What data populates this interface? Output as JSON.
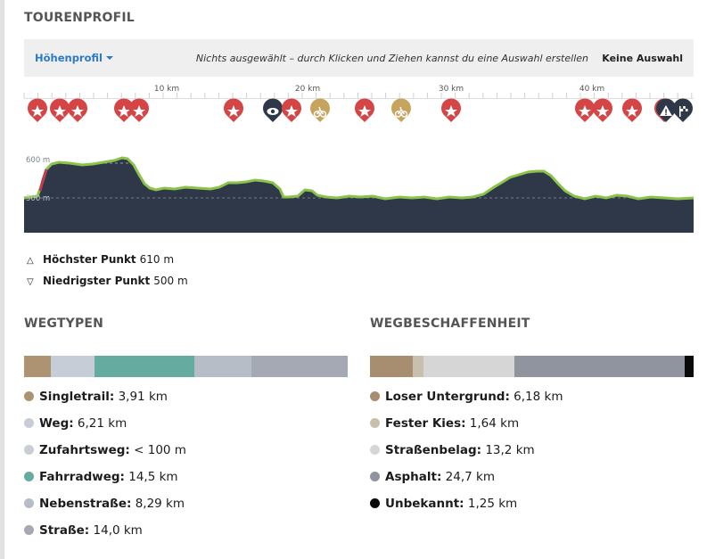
{
  "title": "TOURENPROFIL",
  "toolbar": {
    "dropdown_label": "Höhenprofil",
    "hint": "Nichts ausgewählt – durch Klicken und Ziehen kannst du eine Auswahl erstellen",
    "no_selection": "Keine Auswahl"
  },
  "distance_ticks": [
    "10 km",
    "20 km",
    "30 km",
    "40 km"
  ],
  "elevation_labels": [
    "600 m",
    "500 m"
  ],
  "waypoint_icons": [
    "highlight-star",
    "highlight-star",
    "highlight-star",
    "highlight-star",
    "highlight-star",
    "highlight-star",
    "viewpoint-eye",
    "highlight-star",
    "bike-shop",
    "highlight-star",
    "bike-shop",
    "highlight-star",
    "highlight-star",
    "highlight-star",
    "highlight-star",
    "highlight-star",
    "warning-sign",
    "finish-flag"
  ],
  "stats": {
    "highest_label": "Höchster Punkt",
    "highest_value": "610 m",
    "lowest_label": "Niedrigster Punkt",
    "lowest_value": "500 m"
  },
  "wegtypen": {
    "title": "WEGTYPEN",
    "items": [
      {
        "label": "Singletrail:",
        "value": "3,91 km",
        "color": "#ae9372"
      },
      {
        "label": "Weg:",
        "value": "6,21 km",
        "color": "#c7cdd6"
      },
      {
        "label": "Zufahrtsweg:",
        "value": "< 100 m",
        "color": "#c9ced6"
      },
      {
        "label": "Fahrradweg:",
        "value": "14,5 km",
        "color": "#66aba0"
      },
      {
        "label": "Nebenstraße:",
        "value": "8,29 km",
        "color": "#b7bdc6"
      },
      {
        "label": "Straße:",
        "value": "14,0 km",
        "color": "#a4a9b3"
      }
    ]
  },
  "wegbeschaffenheit": {
    "title": "WEGBESCHAFFENHEIT",
    "items": [
      {
        "label": "Loser Untergrund:",
        "value": "6,18 km",
        "color": "#a88e70"
      },
      {
        "label": "Fester Kies:",
        "value": "1,64 km",
        "color": "#c9bfae"
      },
      {
        "label": "Straßenbelag:",
        "value": "13,2 km",
        "color": "#d6d6d6"
      },
      {
        "label": "Asphalt:",
        "value": "24,7 km",
        "color": "#8f949e"
      },
      {
        "label": "Unbekannt:",
        "value": "1,25 km",
        "color": "#0a0a0a"
      }
    ]
  }
}
